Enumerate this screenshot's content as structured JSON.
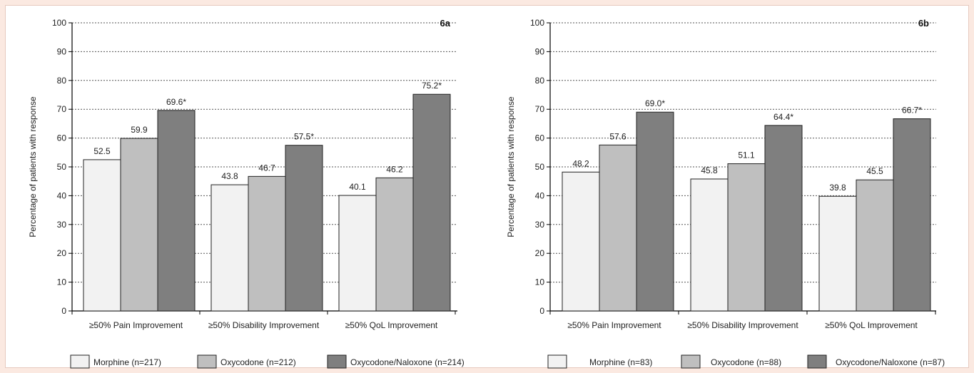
{
  "chart_data": [
    {
      "type": "bar",
      "title": "6a",
      "xlabel": "",
      "ylabel": "Percentage of patients with response",
      "ylim": [
        0,
        100
      ],
      "yticks": [
        0,
        10,
        20,
        30,
        40,
        50,
        60,
        70,
        80,
        90,
        100
      ],
      "grid": true,
      "legend_position": "bottom",
      "categories": [
        "≥50% Pain Improvement",
        "≥50% Disability Improvement",
        "≥50% QoL Improvement"
      ],
      "series": [
        {
          "name": "Morphine (n=217)",
          "color": "#f2f2f2",
          "values": [
            52.5,
            43.8,
            40.1
          ],
          "labels": [
            "52.5",
            "43.8",
            "40.1"
          ]
        },
        {
          "name": "Oxycodone (n=212)",
          "color": "#bfbfbf",
          "values": [
            59.9,
            46.7,
            46.2
          ],
          "labels": [
            "59.9",
            "46.7",
            "46.2"
          ]
        },
        {
          "name": "Oxycodone/Naloxone (n=214)",
          "color": "#7f7f7f",
          "values": [
            69.6,
            57.5,
            75.2
          ],
          "labels": [
            "69.6*",
            "57.5*",
            "75.2*"
          ]
        }
      ]
    },
    {
      "type": "bar",
      "title": "6b",
      "xlabel": "",
      "ylabel": "Percentage of patients with response",
      "ylim": [
        0,
        100
      ],
      "yticks": [
        0,
        10,
        20,
        30,
        40,
        50,
        60,
        70,
        80,
        90,
        100
      ],
      "grid": true,
      "legend_position": "bottom",
      "categories": [
        "≥50% Pain Improvement",
        "≥50% Disability Improvement",
        "≥50% QoL Improvement"
      ],
      "series": [
        {
          "name": "Morphine (n=83)",
          "color": "#f2f2f2",
          "values": [
            48.2,
            45.8,
            39.8
          ],
          "labels": [
            "48.2",
            "45.8",
            "39.8"
          ]
        },
        {
          "name": "Oxycodone (n=88)",
          "color": "#bfbfbf",
          "values": [
            57.6,
            51.1,
            45.5
          ],
          "labels": [
            "57.6",
            "51.1",
            "45.5"
          ]
        },
        {
          "name": "Oxycodone/Naloxone (n=87)",
          "color": "#7f7f7f",
          "values": [
            69.0,
            64.4,
            66.7
          ],
          "labels": [
            "69.0*",
            "64.4*",
            "66.7*"
          ]
        }
      ]
    }
  ]
}
